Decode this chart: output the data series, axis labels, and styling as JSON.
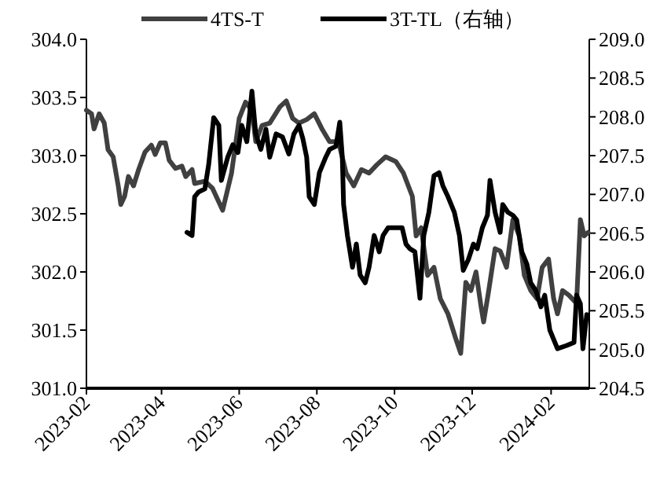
{
  "chart_data": {
    "type": "line",
    "legend": "top",
    "grid": false,
    "line_style": "solid",
    "xlim": [
      "2023-02-01",
      "2024-03-02"
    ],
    "xticks": [
      "2023-02",
      "2023-04",
      "2023-06",
      "2023-08",
      "2023-10",
      "2023-12",
      "2024-02"
    ],
    "ylim": [
      301,
      304
    ],
    "yticks": [
      {
        "value": 301,
        "label": "301.0"
      },
      {
        "value": 301.5,
        "label": "301.5"
      },
      {
        "value": 302,
        "label": "302.0"
      },
      {
        "value": 302.5,
        "label": "302.5"
      },
      {
        "value": 303,
        "label": "303.0"
      },
      {
        "value": 303.5,
        "label": "303.5"
      },
      {
        "value": 304,
        "label": "304.0"
      }
    ],
    "y2lim": [
      204.5,
      209
    ],
    "y2ticks": [
      {
        "value": 204.5,
        "label": "204.5"
      },
      {
        "value": 205,
        "label": "205.0"
      },
      {
        "value": 205.5,
        "label": "205.5"
      },
      {
        "value": 206,
        "label": "206.0"
      },
      {
        "value": 206.5,
        "label": "206.5"
      },
      {
        "value": 207,
        "label": "207.0"
      },
      {
        "value": 207.5,
        "label": "207.5"
      },
      {
        "value": 208,
        "label": "208.0"
      },
      {
        "value": 208.5,
        "label": "208.5"
      },
      {
        "value": 209,
        "label": "209.0"
      }
    ],
    "series": [
      {
        "name": "4TS-T",
        "color": "#404040",
        "x": [
          "2023-02-01",
          "2023-02-05",
          "2023-02-07",
          "2023-02-11",
          "2023-02-15",
          "2023-02-18",
          "2023-02-22",
          "2023-02-26",
          "2023-02-28",
          "2023-03-03",
          "2023-03-06",
          "2023-03-10",
          "2023-03-14",
          "2023-03-19",
          "2023-03-24",
          "2023-03-27",
          "2023-03-31",
          "2023-04-04",
          "2023-04-07",
          "2023-04-12",
          "2023-04-17",
          "2023-04-20",
          "2023-04-25",
          "2023-04-27",
          "2023-05-05",
          "2023-05-11",
          "2023-05-19",
          "2023-05-26",
          "2023-06-01",
          "2023-06-06",
          "2023-06-11",
          "2023-06-14",
          "2023-06-19",
          "2023-06-25",
          "2023-07-03",
          "2023-07-08",
          "2023-07-13",
          "2023-07-18",
          "2023-07-24",
          "2023-07-30",
          "2023-08-05",
          "2023-08-11",
          "2023-08-18",
          "2023-08-24",
          "2023-08-30",
          "2023-09-05",
          "2023-09-11",
          "2023-09-17",
          "2023-09-24",
          "2023-10-02",
          "2023-10-08",
          "2023-10-15",
          "2023-10-18",
          "2023-10-22",
          "2023-10-27",
          "2023-11-01",
          "2023-11-06",
          "2023-11-12",
          "2023-11-18",
          "2023-11-22",
          "2023-11-26",
          "2023-11-30",
          "2023-12-04",
          "2023-12-08",
          "2023-12-10",
          "2023-12-14",
          "2023-12-19",
          "2023-12-23",
          "2023-12-28",
          "2024-01-02",
          "2024-01-07",
          "2024-01-11",
          "2024-01-16",
          "2024-01-21",
          "2024-01-25",
          "2024-01-30",
          "2024-02-03",
          "2024-02-06",
          "2024-02-10",
          "2024-02-15",
          "2024-02-21",
          "2024-02-24",
          "2024-02-27",
          "2024-03-01"
        ],
        "values": [
          303.39,
          303.36,
          303.23,
          303.36,
          303.28,
          303.05,
          302.99,
          302.74,
          302.58,
          302.65,
          302.82,
          302.74,
          302.88,
          303.03,
          303.09,
          303.01,
          303.11,
          303.11,
          302.96,
          302.89,
          302.91,
          302.82,
          302.88,
          302.76,
          302.78,
          302.72,
          302.53,
          302.85,
          303.32,
          303.46,
          303.39,
          303.12,
          303.26,
          303.28,
          303.42,
          303.47,
          303.32,
          303.28,
          303.31,
          303.36,
          303.23,
          303.12,
          303.12,
          302.85,
          302.74,
          302.88,
          302.85,
          302.92,
          302.99,
          302.95,
          302.85,
          302.65,
          302.31,
          302.38,
          301.97,
          302.04,
          301.77,
          301.64,
          301.43,
          301.3,
          301.91,
          301.84,
          302.0,
          301.7,
          301.57,
          301.84,
          302.2,
          302.18,
          302.04,
          302.45,
          302.31,
          301.97,
          301.84,
          301.77,
          302.04,
          302.11,
          301.77,
          301.64,
          301.84,
          301.8,
          301.73,
          302.45,
          302.31,
          302.34
        ]
      },
      {
        "name": "3T-TL（右轴）",
        "color": "#000000",
        "axis": "y2",
        "x": [
          "2023-04-21",
          "2023-04-25",
          "2023-04-27",
          "2023-04-30",
          "2023-05-05",
          "2023-05-08",
          "2023-05-12",
          "2023-05-16",
          "2023-05-18",
          "2023-05-23",
          "2023-05-27",
          "2023-05-31",
          "2023-06-03",
          "2023-06-07",
          "2023-06-11",
          "2023-06-14",
          "2023-06-18",
          "2023-06-22",
          "2023-06-25",
          "2023-06-30",
          "2023-07-05",
          "2023-07-10",
          "2023-07-14",
          "2023-07-18",
          "2023-07-21",
          "2023-07-24",
          "2023-07-26",
          "2023-07-30",
          "2023-08-03",
          "2023-08-08",
          "2023-08-11",
          "2023-08-16",
          "2023-08-19",
          "2023-08-21",
          "2023-08-22",
          "2023-08-25",
          "2023-08-29",
          "2023-09-01",
          "2023-09-04",
          "2023-09-08",
          "2023-09-11",
          "2023-09-15",
          "2023-09-19",
          "2023-09-22",
          "2023-09-26",
          "2023-09-30",
          "2023-10-07",
          "2023-10-10",
          "2023-10-13",
          "2023-10-17",
          "2023-10-21",
          "2023-10-24",
          "2023-10-28",
          "2023-11-01",
          "2023-11-05",
          "2023-11-08",
          "2023-11-12",
          "2023-11-17",
          "2023-11-21",
          "2023-11-24",
          "2023-11-28",
          "2023-12-02",
          "2023-12-05",
          "2023-12-09",
          "2023-12-13",
          "2023-12-15",
          "2023-12-19",
          "2023-12-23",
          "2023-12-25",
          "2023-12-29",
          "2024-01-02",
          "2024-01-05",
          "2024-01-09",
          "2024-01-13",
          "2024-01-16",
          "2024-01-20",
          "2024-01-24",
          "2024-01-27",
          "2024-01-31",
          "2024-02-06",
          "2024-02-13",
          "2024-02-19",
          "2024-02-21",
          "2024-02-24",
          "2024-02-26",
          "2024-02-29"
        ],
        "values": [
          206.51,
          206.47,
          206.97,
          207.03,
          207.07,
          207.38,
          207.99,
          207.89,
          207.18,
          207.48,
          207.64,
          207.54,
          207.89,
          207.68,
          208.33,
          207.78,
          207.58,
          207.84,
          207.48,
          207.78,
          207.74,
          207.52,
          207.78,
          207.89,
          207.72,
          207.48,
          206.97,
          206.87,
          207.28,
          207.48,
          207.58,
          207.62,
          207.93,
          207.48,
          206.87,
          206.47,
          206.06,
          206.36,
          205.96,
          205.86,
          206.06,
          206.47,
          206.26,
          206.47,
          206.57,
          206.57,
          206.57,
          206.36,
          206.3,
          206.26,
          205.66,
          206.47,
          206.77,
          207.24,
          207.28,
          207.11,
          206.97,
          206.77,
          206.47,
          206.02,
          206.16,
          206.36,
          206.3,
          206.57,
          206.73,
          207.18,
          206.77,
          206.51,
          206.87,
          206.77,
          206.73,
          206.67,
          206.26,
          206.1,
          205.86,
          205.76,
          205.55,
          205.7,
          205.25,
          205.01,
          205.05,
          205.09,
          205.7,
          205.59,
          205.01,
          205.45
        ]
      }
    ]
  }
}
